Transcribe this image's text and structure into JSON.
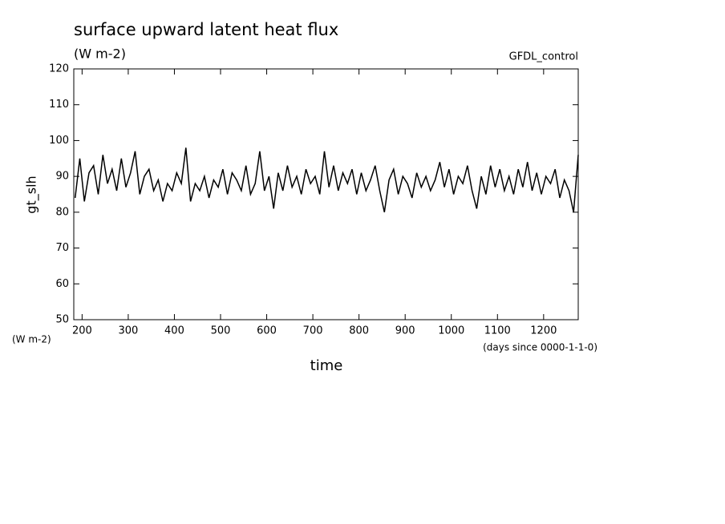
{
  "chart_data": {
    "type": "line",
    "title": "surface upward latent heat flux",
    "subtitle": "(W m-2)",
    "annotation": "GFDL_control",
    "y_units": "(W m-2)",
    "x_units": "(days since 0000-1-1-0)",
    "xlabel": "time",
    "ylabel": "gt_slh",
    "x": [
      185,
      195,
      205,
      215,
      225,
      235,
      245,
      255,
      265,
      275,
      285,
      295,
      305,
      315,
      325,
      335,
      345,
      355,
      365,
      375,
      385,
      395,
      405,
      415,
      425,
      435,
      445,
      455,
      465,
      475,
      485,
      495,
      505,
      515,
      525,
      535,
      545,
      555,
      565,
      575,
      585,
      595,
      605,
      615,
      625,
      635,
      645,
      655,
      665,
      675,
      685,
      695,
      705,
      715,
      725,
      735,
      745,
      755,
      765,
      775,
      785,
      795,
      805,
      815,
      825,
      835,
      845,
      855,
      865,
      875,
      885,
      895,
      905,
      915,
      925,
      935,
      945,
      955,
      965,
      975,
      985,
      995,
      1005,
      1015,
      1025,
      1035,
      1045,
      1055,
      1065,
      1075,
      1085,
      1095,
      1105,
      1115,
      1125,
      1135,
      1145,
      1155,
      1165,
      1175,
      1185,
      1195,
      1205,
      1215,
      1225,
      1235,
      1245,
      1255,
      1265,
      1275
    ],
    "series": [
      {
        "name": "gt_slh",
        "color": "#000000",
        "values": [
          84,
          95,
          83,
          91,
          93,
          85,
          96,
          88,
          92,
          86,
          95,
          87,
          91,
          97,
          85,
          90,
          92,
          86,
          89,
          83,
          88,
          86,
          91,
          88,
          98,
          83,
          88,
          86,
          90,
          84,
          89,
          87,
          92,
          85,
          91,
          89,
          86,
          93,
          85,
          88,
          97,
          86,
          90,
          81,
          91,
          86,
          93,
          87,
          90,
          85,
          92,
          88,
          90,
          85,
          97,
          87,
          93,
          86,
          91,
          88,
          92,
          85,
          91,
          86,
          89,
          93,
          86,
          80,
          89,
          92,
          85,
          90,
          88,
          84,
          91,
          87,
          90,
          86,
          89,
          94,
          87,
          92,
          85,
          90,
          88,
          93,
          86,
          81,
          90,
          85,
          93,
          87,
          92,
          86,
          90,
          85,
          92,
          87,
          94,
          86,
          91,
          85,
          90,
          88,
          92,
          84,
          89,
          86,
          80,
          96
        ]
      }
    ],
    "xlim": [
      182,
      1275
    ],
    "ylim": [
      50,
      120
    ],
    "xticks": [
      200,
      300,
      400,
      500,
      600,
      700,
      800,
      900,
      1000,
      1100,
      1200
    ],
    "yticks": [
      50,
      60,
      70,
      80,
      90,
      100,
      110,
      120
    ]
  }
}
